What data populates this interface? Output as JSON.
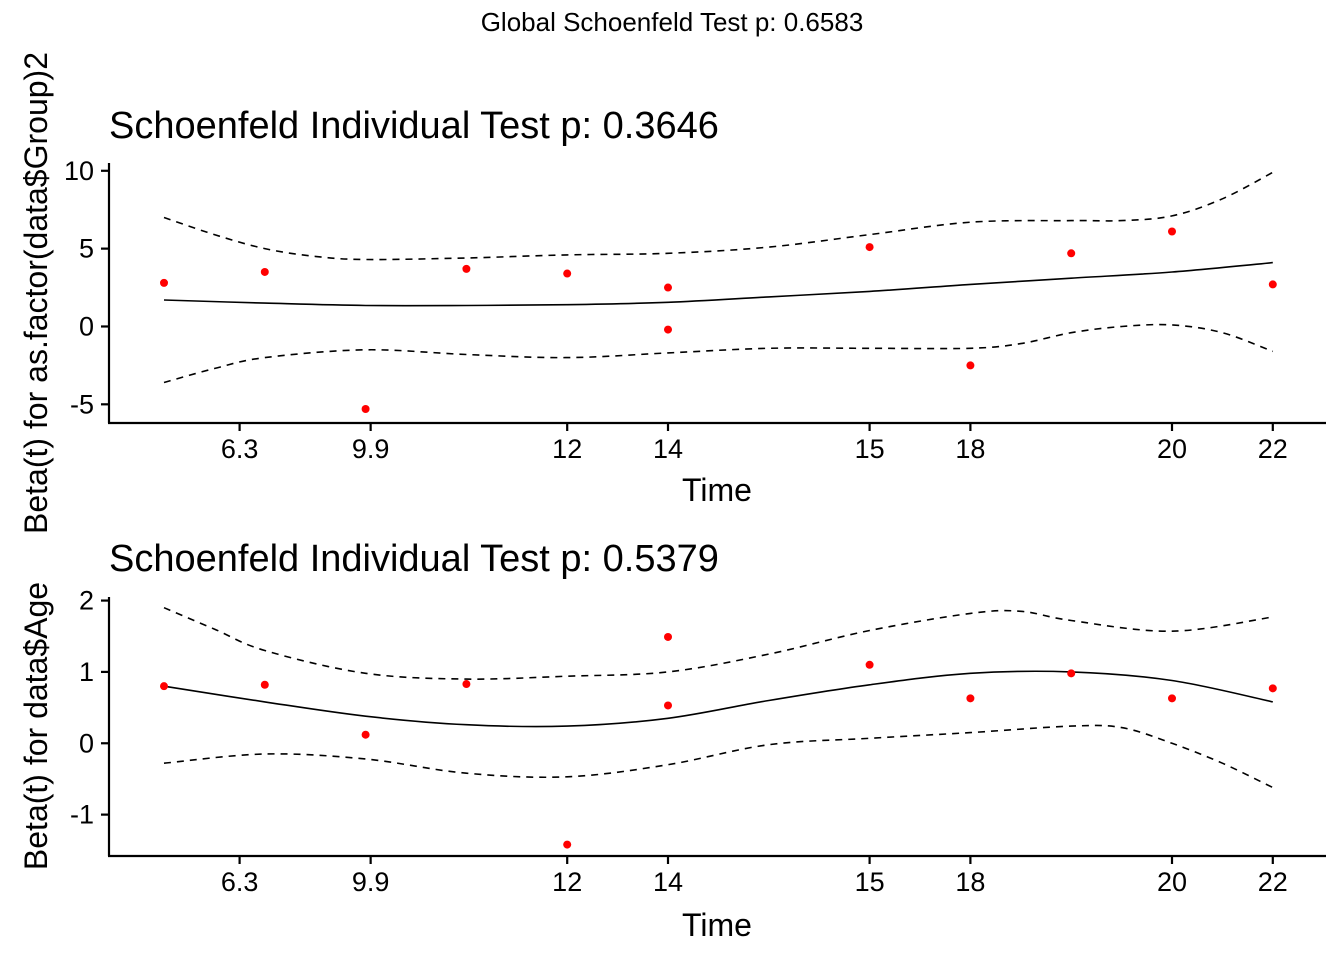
{
  "suptitle": "Global Schoenfeld Test p: 0.6583",
  "chart_data": [
    {
      "type": "scatter",
      "title": "Schoenfeld Individual Test p: 0.3646",
      "xlabel": "Time",
      "ylabel": "Beta(t) for as.factor(data$Group)2",
      "ylim": [
        -6.2,
        10.5
      ],
      "yticks": [
        10,
        5,
        0,
        -5
      ],
      "xtick_labels": [
        "6.3",
        "9.9",
        "12",
        "14",
        "15",
        "18",
        "20",
        "22"
      ],
      "grid": false,
      "points": [
        {
          "x": 0.0,
          "y": 2.8
        },
        {
          "x": 1.0,
          "y": 3.5
        },
        {
          "x": 2.0,
          "y": -5.3
        },
        {
          "x": 3.0,
          "y": 3.7
        },
        {
          "x": 4.0,
          "y": 3.4
        },
        {
          "x": 5.0,
          "y": 2.5
        },
        {
          "x": 5.0,
          "y": -0.2
        },
        {
          "x": 7.0,
          "y": 5.1
        },
        {
          "x": 8.0,
          "y": -2.5
        },
        {
          "x": 9.0,
          "y": 4.7
        },
        {
          "x": 10.0,
          "y": 6.1
        },
        {
          "x": 11.0,
          "y": 2.7
        }
      ],
      "fit": [
        {
          "x": 0,
          "y": 1.7
        },
        {
          "x": 1,
          "y": 1.5
        },
        {
          "x": 2,
          "y": 1.35
        },
        {
          "x": 3,
          "y": 1.35
        },
        {
          "x": 4,
          "y": 1.4
        },
        {
          "x": 5,
          "y": 1.55
        },
        {
          "x": 6,
          "y": 1.9
        },
        {
          "x": 7,
          "y": 2.25
        },
        {
          "x": 8,
          "y": 2.7
        },
        {
          "x": 9,
          "y": 3.1
        },
        {
          "x": 10,
          "y": 3.5
        },
        {
          "x": 11,
          "y": 4.1
        }
      ],
      "upper": [
        {
          "x": 0,
          "y": 7.0
        },
        {
          "x": 0.5,
          "y": 5.9
        },
        {
          "x": 1,
          "y": 5.0
        },
        {
          "x": 1.5,
          "y": 4.5
        },
        {
          "x": 2,
          "y": 4.3
        },
        {
          "x": 3,
          "y": 4.4
        },
        {
          "x": 4,
          "y": 4.6
        },
        {
          "x": 5,
          "y": 4.7
        },
        {
          "x": 6,
          "y": 5.1
        },
        {
          "x": 7,
          "y": 5.9
        },
        {
          "x": 8,
          "y": 6.7
        },
        {
          "x": 9,
          "y": 6.8
        },
        {
          "x": 9.5,
          "y": 6.8
        },
        {
          "x": 10,
          "y": 7.1
        },
        {
          "x": 10.5,
          "y": 8.2
        },
        {
          "x": 11,
          "y": 9.9
        }
      ],
      "lower": [
        {
          "x": 0,
          "y": -3.6
        },
        {
          "x": 0.5,
          "y": -2.7
        },
        {
          "x": 1,
          "y": -2.0
        },
        {
          "x": 2,
          "y": -1.5
        },
        {
          "x": 3,
          "y": -1.8
        },
        {
          "x": 4,
          "y": -2.0
        },
        {
          "x": 5,
          "y": -1.7
        },
        {
          "x": 6,
          "y": -1.4
        },
        {
          "x": 7,
          "y": -1.4
        },
        {
          "x": 8,
          "y": -1.4
        },
        {
          "x": 8.5,
          "y": -1.1
        },
        {
          "x": 9,
          "y": -0.4
        },
        {
          "x": 9.5,
          "y": 0.0
        },
        {
          "x": 10,
          "y": 0.1
        },
        {
          "x": 10.5,
          "y": -0.4
        },
        {
          "x": 11,
          "y": -1.6
        }
      ]
    },
    {
      "type": "scatter",
      "title": "Schoenfeld Individual Test p: 0.5379",
      "xlabel": "Time",
      "ylabel": "Beta(t) for data$Age",
      "ylim": [
        -1.58,
        2.05
      ],
      "yticks": [
        2,
        1,
        0,
        -1
      ],
      "xtick_labels": [
        "6.3",
        "9.9",
        "12",
        "14",
        "15",
        "18",
        "20",
        "22"
      ],
      "grid": false,
      "points": [
        {
          "x": 0.0,
          "y": 0.8
        },
        {
          "x": 1.0,
          "y": 0.82
        },
        {
          "x": 2.0,
          "y": 0.12
        },
        {
          "x": 3.0,
          "y": 0.83
        },
        {
          "x": 4.0,
          "y": -1.42
        },
        {
          "x": 5.0,
          "y": 1.49
        },
        {
          "x": 5.0,
          "y": 0.53
        },
        {
          "x": 7.0,
          "y": 1.1
        },
        {
          "x": 8.0,
          "y": 0.63
        },
        {
          "x": 9.0,
          "y": 0.98
        },
        {
          "x": 10.0,
          "y": 0.63
        },
        {
          "x": 11.0,
          "y": 0.77
        }
      ],
      "fit": [
        {
          "x": 0,
          "y": 0.8
        },
        {
          "x": 1,
          "y": 0.58
        },
        {
          "x": 2,
          "y": 0.38
        },
        {
          "x": 3,
          "y": 0.26
        },
        {
          "x": 4,
          "y": 0.24
        },
        {
          "x": 5,
          "y": 0.35
        },
        {
          "x": 6,
          "y": 0.6
        },
        {
          "x": 7,
          "y": 0.82
        },
        {
          "x": 8,
          "y": 0.98
        },
        {
          "x": 9,
          "y": 1.0
        },
        {
          "x": 10,
          "y": 0.88
        },
        {
          "x": 11,
          "y": 0.58
        }
      ],
      "upper": [
        {
          "x": 0,
          "y": 1.9
        },
        {
          "x": 0.5,
          "y": 1.6
        },
        {
          "x": 1,
          "y": 1.3
        },
        {
          "x": 2,
          "y": 0.98
        },
        {
          "x": 3,
          "y": 0.9
        },
        {
          "x": 4,
          "y": 0.94
        },
        {
          "x": 5,
          "y": 1.0
        },
        {
          "x": 6,
          "y": 1.25
        },
        {
          "x": 7,
          "y": 1.58
        },
        {
          "x": 8,
          "y": 1.82
        },
        {
          "x": 8.5,
          "y": 1.85
        },
        {
          "x": 9,
          "y": 1.72
        },
        {
          "x": 10,
          "y": 1.57
        },
        {
          "x": 11,
          "y": 1.77
        }
      ],
      "lower": [
        {
          "x": 0,
          "y": -0.28
        },
        {
          "x": 1,
          "y": -0.15
        },
        {
          "x": 2,
          "y": -0.22
        },
        {
          "x": 3,
          "y": -0.42
        },
        {
          "x": 4,
          "y": -0.47
        },
        {
          "x": 5,
          "y": -0.3
        },
        {
          "x": 6,
          "y": -0.02
        },
        {
          "x": 7,
          "y": 0.07
        },
        {
          "x": 8,
          "y": 0.15
        },
        {
          "x": 9,
          "y": 0.24
        },
        {
          "x": 9.5,
          "y": 0.22
        },
        {
          "x": 10,
          "y": 0.0
        },
        {
          "x": 10.5,
          "y": -0.28
        },
        {
          "x": 11,
          "y": -0.62
        }
      ]
    }
  ]
}
